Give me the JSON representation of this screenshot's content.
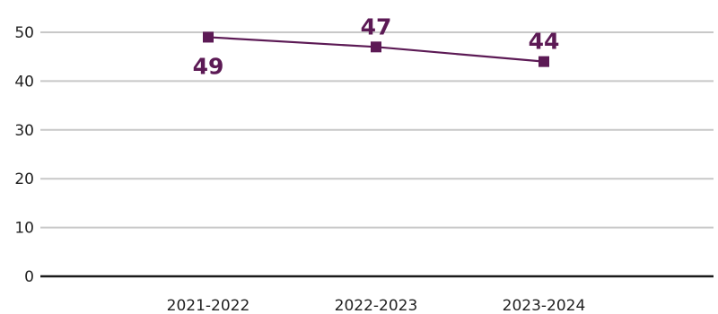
{
  "colors": {
    "series": "#5c1a55",
    "grid": "#c8c8c8",
    "baseline": "#1a1a1a",
    "text": "#222222"
  },
  "chart_data": {
    "type": "line",
    "categories": [
      "2021-2022",
      "2022-2023",
      "2023-2024"
    ],
    "series": [
      {
        "values": [
          49,
          47,
          44
        ],
        "marker": "square"
      }
    ],
    "data_labels": [
      "49",
      "47",
      "44"
    ],
    "data_label_positions": [
      "below",
      "above",
      "above"
    ],
    "yticks": [
      0,
      10,
      20,
      30,
      40,
      50
    ],
    "ylim": [
      0,
      50
    ],
    "grid": true,
    "legend": "none"
  }
}
